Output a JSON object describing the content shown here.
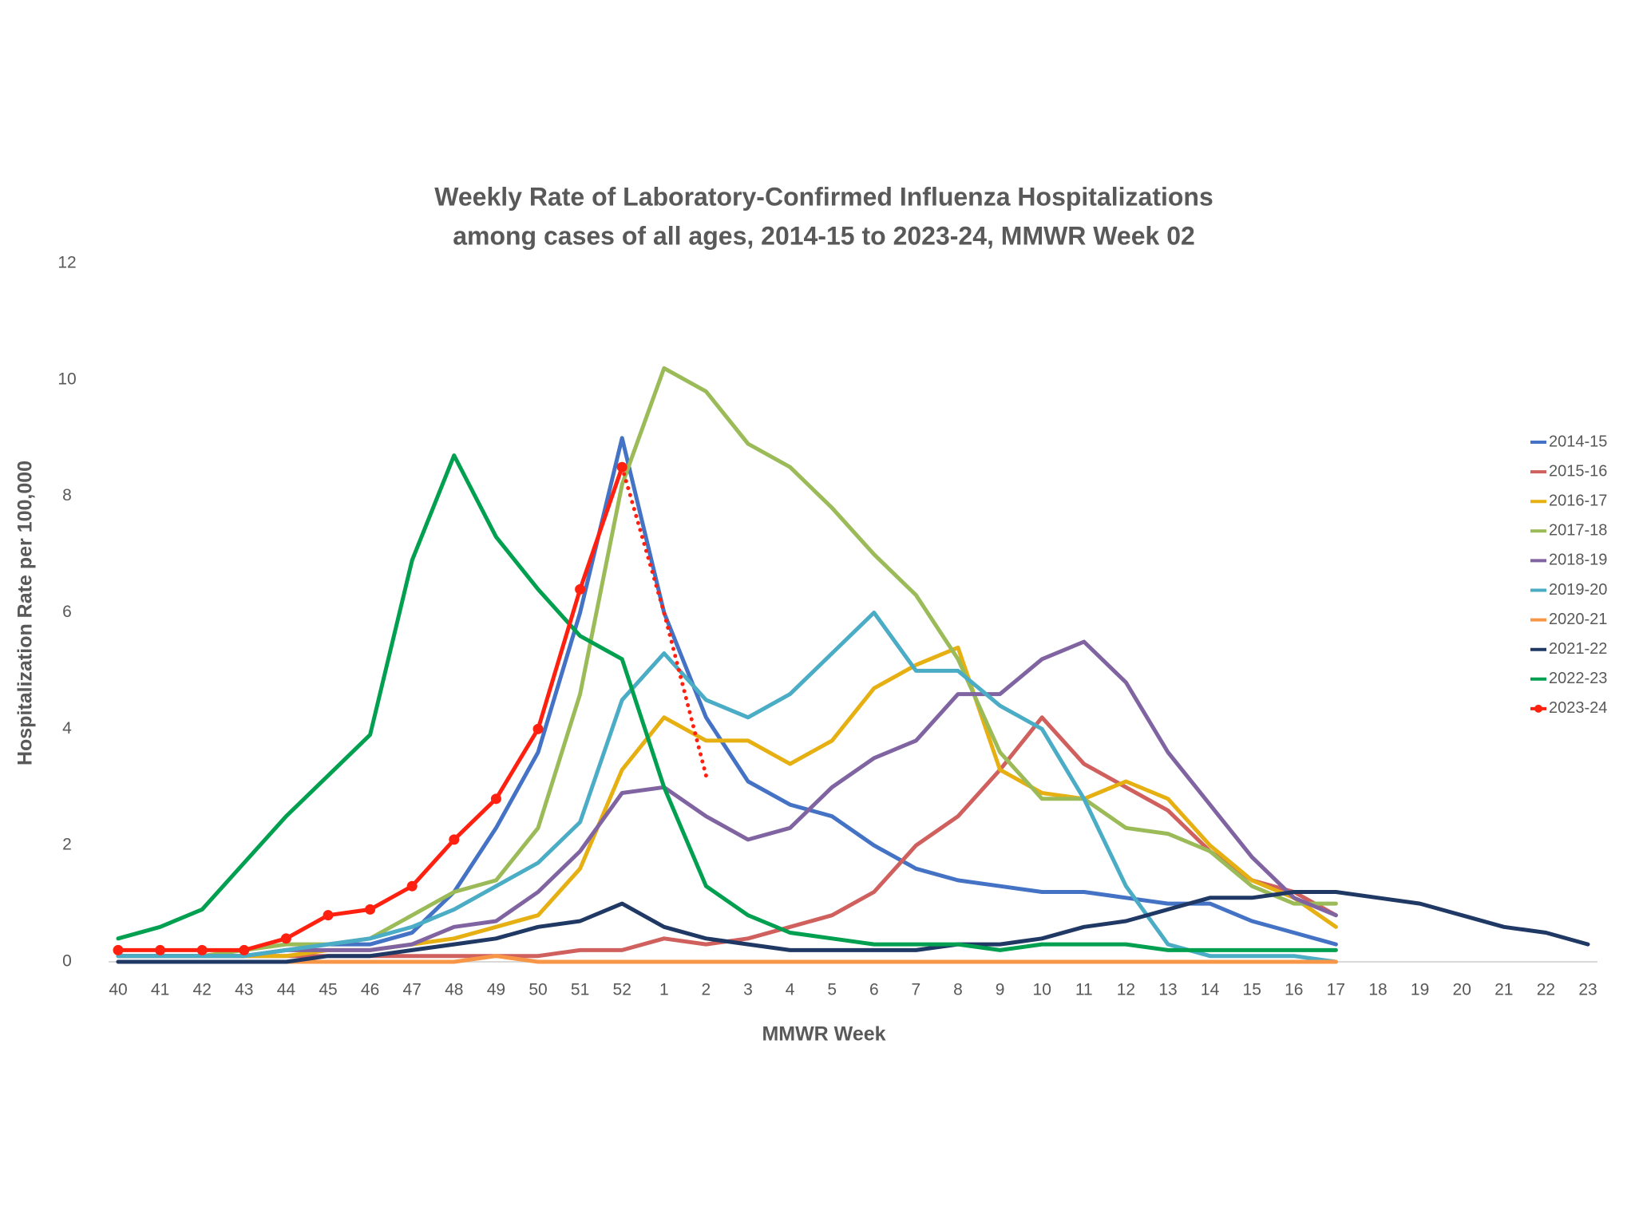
{
  "chart_data": {
    "type": "line",
    "title": [
      "Weekly Rate of Laboratory-Confirmed Influenza Hospitalizations",
      "among cases of all ages, 2014-15 to 2023-24, MMWR Week 02"
    ],
    "x_label": "MMWR Week",
    "y_label": "Hospitalization Rate per 100,000",
    "categories": [
      "40",
      "41",
      "42",
      "43",
      "44",
      "45",
      "46",
      "47",
      "48",
      "49",
      "50",
      "51",
      "52",
      "1",
      "2",
      "3",
      "4",
      "5",
      "6",
      "7",
      "8",
      "9",
      "10",
      "11",
      "12",
      "13",
      "14",
      "15",
      "16",
      "17",
      "18",
      "19",
      "20",
      "21",
      "22",
      "23"
    ],
    "ylim": [
      0,
      12
    ],
    "yticks": [
      0,
      2,
      4,
      6,
      8,
      10,
      12
    ],
    "grid": false,
    "legend": "right",
    "series": [
      {
        "name": "2014-15",
        "color": "#4472c4",
        "values": [
          0.1,
          0.1,
          0.1,
          0.1,
          0.2,
          0.3,
          0.3,
          0.5,
          1.2,
          2.3,
          3.6,
          6.0,
          9.0,
          6.0,
          4.2,
          3.1,
          2.7,
          2.5,
          2.0,
          1.6,
          1.4,
          1.3,
          1.2,
          1.2,
          1.1,
          1.0,
          1.0,
          0.7,
          0.5,
          0.3,
          null,
          null,
          null,
          null,
          null,
          null
        ]
      },
      {
        "name": "2015-16",
        "color": "#d0605e",
        "values": [
          0.1,
          0.1,
          0.1,
          0.1,
          0.1,
          0.1,
          0.1,
          0.1,
          0.1,
          0.1,
          0.1,
          0.2,
          0.2,
          0.4,
          0.3,
          0.4,
          0.6,
          0.8,
          1.2,
          2.0,
          2.5,
          3.3,
          4.2,
          3.4,
          3.0,
          2.6,
          1.9,
          1.4,
          1.2,
          0.8,
          null,
          null,
          null,
          null,
          null,
          null
        ]
      },
      {
        "name": "2016-17",
        "color": "#e6b012",
        "values": [
          0.1,
          0.1,
          0.1,
          0.1,
          0.1,
          0.2,
          0.2,
          0.3,
          0.4,
          0.6,
          0.8,
          1.6,
          3.3,
          4.2,
          3.8,
          3.8,
          3.4,
          3.8,
          4.7,
          5.1,
          5.4,
          3.3,
          2.9,
          2.8,
          3.1,
          2.8,
          2.0,
          1.4,
          1.1,
          0.6,
          null,
          null,
          null,
          null,
          null,
          null
        ]
      },
      {
        "name": "2017-18",
        "color": "#9bbb59",
        "values": [
          0.1,
          0.1,
          0.1,
          0.2,
          0.3,
          0.3,
          0.4,
          0.8,
          1.2,
          1.4,
          2.3,
          4.6,
          8.2,
          10.2,
          9.8,
          8.9,
          8.5,
          7.8,
          7.0,
          6.3,
          5.2,
          3.6,
          2.8,
          2.8,
          2.3,
          2.2,
          1.9,
          1.3,
          1.0,
          1.0,
          null,
          null,
          null,
          null,
          null,
          null
        ]
      },
      {
        "name": "2018-19",
        "color": "#8064a2",
        "values": [
          0.1,
          0.1,
          0.1,
          0.1,
          0.2,
          0.2,
          0.2,
          0.3,
          0.6,
          0.7,
          1.2,
          1.9,
          2.9,
          3.0,
          2.5,
          2.1,
          2.3,
          3.0,
          3.5,
          3.8,
          4.6,
          4.6,
          5.2,
          5.5,
          4.8,
          3.6,
          2.7,
          1.8,
          1.1,
          0.8,
          null,
          null,
          null,
          null,
          null,
          null
        ]
      },
      {
        "name": "2019-20",
        "color": "#4bacc6",
        "values": [
          0.1,
          0.1,
          0.1,
          0.1,
          0.2,
          0.3,
          0.4,
          0.6,
          0.9,
          1.3,
          1.7,
          2.4,
          4.5,
          5.3,
          4.5,
          4.2,
          4.6,
          5.3,
          6.0,
          5.0,
          5.0,
          4.4,
          4.0,
          2.8,
          1.3,
          0.3,
          0.1,
          0.1,
          0.1,
          0.0,
          null,
          null,
          null,
          null,
          null,
          null
        ]
      },
      {
        "name": "2020-21",
        "color": "#f79646",
        "values": [
          0.0,
          0.0,
          0.0,
          0.0,
          0.0,
          0.0,
          0.0,
          0.0,
          0.0,
          0.1,
          0.0,
          0.0,
          0.0,
          0.0,
          0.0,
          0.0,
          0.0,
          0.0,
          0.0,
          0.0,
          0.0,
          0.0,
          0.0,
          0.0,
          0.0,
          0.0,
          0.0,
          0.0,
          0.0,
          0.0,
          null,
          null,
          null,
          null,
          null,
          null
        ]
      },
      {
        "name": "2021-22",
        "color": "#1f3864",
        "values": [
          0.0,
          0.0,
          0.0,
          0.0,
          0.0,
          0.1,
          0.1,
          0.2,
          0.3,
          0.4,
          0.6,
          0.7,
          1.0,
          0.6,
          0.4,
          0.3,
          0.2,
          0.2,
          0.2,
          0.2,
          0.3,
          0.3,
          0.4,
          0.6,
          0.7,
          0.9,
          1.1,
          1.1,
          1.2,
          1.2,
          1.1,
          1.0,
          0.8,
          0.6,
          0.5,
          0.3
        ]
      },
      {
        "name": "2022-23",
        "color": "#00a050",
        "values": [
          0.4,
          0.6,
          0.9,
          1.7,
          2.5,
          3.2,
          3.9,
          6.9,
          8.7,
          7.3,
          6.4,
          5.6,
          5.2,
          3.0,
          1.3,
          0.8,
          0.5,
          0.4,
          0.3,
          0.3,
          0.3,
          0.2,
          0.3,
          0.3,
          0.3,
          0.2,
          0.2,
          0.2,
          0.2,
          0.2,
          null,
          null,
          null,
          null,
          null,
          null
        ]
      },
      {
        "name": "2023-24",
        "color": "#ff2010",
        "marker": "circle",
        "values": [
          0.2,
          0.2,
          0.2,
          0.2,
          0.4,
          0.8,
          0.9,
          1.3,
          2.1,
          2.8,
          4.0,
          6.4,
          8.5,
          null,
          null,
          null,
          null,
          null,
          null,
          null,
          null,
          null,
          null,
          null,
          null,
          null,
          null,
          null,
          null,
          null,
          null,
          null,
          null,
          null,
          null,
          null
        ],
        "dotted_values": [
          null,
          null,
          null,
          null,
          null,
          null,
          null,
          null,
          null,
          null,
          null,
          null,
          8.5,
          6.0,
          3.2,
          null,
          null,
          null,
          null,
          null,
          null,
          null,
          null,
          null,
          null,
          null,
          null,
          null,
          null,
          null,
          null,
          null,
          null,
          null,
          null,
          null
        ]
      }
    ]
  }
}
